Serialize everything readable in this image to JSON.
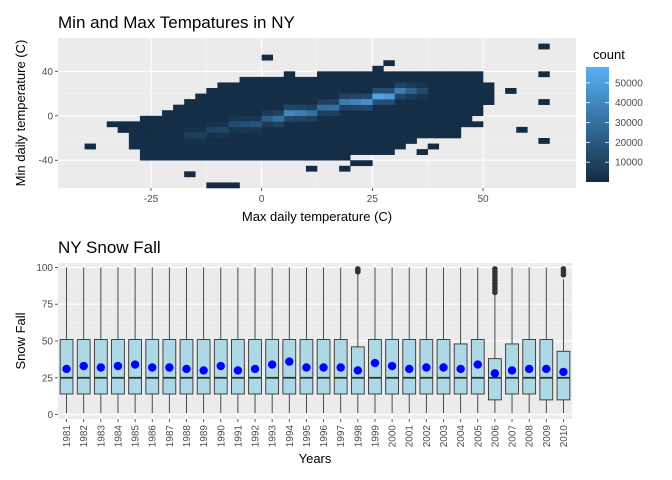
{
  "chart_data": [
    {
      "type": "heatmap",
      "title": "Min and Max Tempatures in NY",
      "xlabel": "Max daily temperature (C)",
      "ylabel": "Min daily temperature (C)",
      "xlim": [
        -46,
        71
      ],
      "ylim": [
        -65,
        70
      ],
      "xticks": [
        -25,
        0,
        25,
        50
      ],
      "yticks": [
        -40,
        0,
        40
      ],
      "legend": {
        "title": "count",
        "position": "right",
        "ticks": [
          10000,
          20000,
          30000,
          40000,
          50000
        ],
        "range": [
          0,
          58000
        ],
        "low_color": "#132B43",
        "high_color": "#56B1F7"
      },
      "bins_x": 2.5,
      "bins_y": 5,
      "dense_columns": [
        {
          "x": -35,
          "y0": -10,
          "y1": -5
        },
        {
          "x": -32.5,
          "y0": -15,
          "y1": -5
        },
        {
          "x": -30,
          "y0": -30,
          "y1": -5
        },
        {
          "x": -27.5,
          "y0": -40,
          "y1": 0
        },
        {
          "x": -25,
          "y0": -40,
          "y1": 0
        },
        {
          "x": -22.5,
          "y0": -40,
          "y1": 5
        },
        {
          "x": -20,
          "y0": -40,
          "y1": 10
        },
        {
          "x": -17.5,
          "y0": -40,
          "y1": 15
        },
        {
          "x": -15,
          "y0": -40,
          "y1": 20
        },
        {
          "x": -12.5,
          "y0": -40,
          "y1": 25
        },
        {
          "x": -10,
          "y0": -40,
          "y1": 30
        },
        {
          "x": -7.5,
          "y0": -40,
          "y1": 30
        },
        {
          "x": -5,
          "y0": -40,
          "y1": 35
        },
        {
          "x": -2.5,
          "y0": -40,
          "y1": 35
        },
        {
          "x": 0,
          "y0": -40,
          "y1": 35
        },
        {
          "x": 2.5,
          "y0": -40,
          "y1": 35
        },
        {
          "x": 5,
          "y0": -40,
          "y1": 35
        },
        {
          "x": 7.5,
          "y0": -40,
          "y1": 35
        },
        {
          "x": 10,
          "y0": -40,
          "y1": 35
        },
        {
          "x": 12.5,
          "y0": -40,
          "y1": 40
        },
        {
          "x": 15,
          "y0": -40,
          "y1": 40
        },
        {
          "x": 17.5,
          "y0": -35,
          "y1": 40
        },
        {
          "x": 20,
          "y0": -35,
          "y1": 40
        },
        {
          "x": 22.5,
          "y0": -35,
          "y1": 40
        },
        {
          "x": 25,
          "y0": -35,
          "y1": 45
        },
        {
          "x": 27.5,
          "y0": -35,
          "y1": 40
        },
        {
          "x": 30,
          "y0": -30,
          "y1": 40
        },
        {
          "x": 32.5,
          "y0": -25,
          "y1": 40
        },
        {
          "x": 35,
          "y0": -20,
          "y1": 40
        },
        {
          "x": 37.5,
          "y0": -20,
          "y1": 40
        },
        {
          "x": 40,
          "y0": -20,
          "y1": 40
        },
        {
          "x": 42.5,
          "y0": -20,
          "y1": 40
        },
        {
          "x": 45,
          "y0": -10,
          "y1": 40
        },
        {
          "x": 47.5,
          "y0": 0,
          "y1": 40
        },
        {
          "x": 50,
          "y0": 10,
          "y1": 30
        }
      ],
      "sparse_bins": [
        {
          "x": -40,
          "y": -30
        },
        {
          "x": -32.5,
          "y": -15
        },
        {
          "x": -27.5,
          "y": -15
        },
        {
          "x": -12.5,
          "y": -65
        },
        {
          "x": -10,
          "y": -65
        },
        {
          "x": -7.5,
          "y": -65
        },
        {
          "x": -17.5,
          "y": -55
        },
        {
          "x": 0,
          "y": 50
        },
        {
          "x": 5,
          "y": 30
        },
        {
          "x": 5,
          "y": 35
        },
        {
          "x": 10,
          "y": -50
        },
        {
          "x": 17.5,
          "y": -50
        },
        {
          "x": 17.5,
          "y": -40
        },
        {
          "x": 20,
          "y": -45
        },
        {
          "x": 22.5,
          "y": -45
        },
        {
          "x": 27.5,
          "y": 45
        },
        {
          "x": 35,
          "y": -35
        },
        {
          "x": 37.5,
          "y": -30
        },
        {
          "x": 47.5,
          "y": -10
        },
        {
          "x": 55,
          "y": 20
        },
        {
          "x": 57.5,
          "y": -15
        },
        {
          "x": 62.5,
          "y": 60
        },
        {
          "x": 62.5,
          "y": 10
        },
        {
          "x": 62.5,
          "y": -25
        },
        {
          "x": 62.5,
          "y": 35
        }
      ],
      "ridge": [
        {
          "x": -17.5,
          "y": -20,
          "count": 8000
        },
        {
          "x": -15,
          "y": -20,
          "count": 9000
        },
        {
          "x": -12.5,
          "y": -15,
          "count": 10000
        },
        {
          "x": -10,
          "y": -15,
          "count": 12000
        },
        {
          "x": -7.5,
          "y": -10,
          "count": 14000
        },
        {
          "x": -5,
          "y": -10,
          "count": 16000
        },
        {
          "x": -2.5,
          "y": -10,
          "count": 18000
        },
        {
          "x": 0,
          "y": -5,
          "count": 22000
        },
        {
          "x": 2.5,
          "y": -5,
          "count": 30000
        },
        {
          "x": 5,
          "y": 0,
          "count": 40000
        },
        {
          "x": 7.5,
          "y": 0,
          "count": 36000
        },
        {
          "x": 10,
          "y": 0,
          "count": 30000
        },
        {
          "x": 12.5,
          "y": 5,
          "count": 28000
        },
        {
          "x": 15,
          "y": 5,
          "count": 30000
        },
        {
          "x": 17.5,
          "y": 10,
          "count": 34000
        },
        {
          "x": 20,
          "y": 10,
          "count": 38000
        },
        {
          "x": 22.5,
          "y": 10,
          "count": 44000
        },
        {
          "x": 25,
          "y": 15,
          "count": 52000
        },
        {
          "x": 27.5,
          "y": 15,
          "count": 48000
        },
        {
          "x": 30,
          "y": 20,
          "count": 36000
        },
        {
          "x": 32.5,
          "y": 20,
          "count": 24000
        },
        {
          "x": 35,
          "y": 20,
          "count": 14000
        }
      ]
    },
    {
      "type": "boxplot",
      "title": "NY Snow Fall",
      "xlabel": "Years",
      "ylabel": "Snow Fall",
      "ylim": [
        -3,
        103
      ],
      "yticks": [
        0,
        25,
        50,
        75,
        100
      ],
      "box_fill": "#ADD8E6",
      "mean_color": "#0000FF",
      "categories": [
        "1981",
        "1982",
        "1983",
        "1984",
        "1985",
        "1986",
        "1987",
        "1988",
        "1989",
        "1990",
        "1991",
        "1992",
        "1993",
        "1994",
        "1995",
        "1996",
        "1997",
        "1998",
        "1999",
        "2000",
        "2001",
        "2002",
        "2003",
        "2004",
        "2005",
        "2006",
        "2007",
        "2008",
        "2009",
        "2010"
      ],
      "q1": [
        14,
        14,
        14,
        14,
        14,
        14,
        14,
        14,
        14,
        14,
        14,
        14,
        14,
        14,
        14,
        14,
        14,
        14,
        14,
        14,
        14,
        14,
        14,
        14,
        14,
        10,
        14,
        14,
        10,
        10
      ],
      "median": [
        25,
        25,
        25,
        25,
        25,
        25,
        25,
        25,
        25,
        25,
        25,
        25,
        25,
        25,
        25,
        25,
        25,
        25,
        25,
        25,
        25,
        25,
        25,
        25,
        25,
        25,
        25,
        25,
        25,
        25
      ],
      "q3": [
        51,
        51,
        51,
        51,
        51,
        51,
        51,
        51,
        51,
        51,
        51,
        51,
        51,
        51,
        51,
        51,
        51,
        46,
        51,
        51,
        51,
        51,
        51,
        48,
        51,
        38,
        48,
        51,
        51,
        43
      ],
      "whisker_low": [
        1,
        1,
        1,
        1,
        1,
        1,
        1,
        1,
        1,
        1,
        1,
        1,
        1,
        1,
        1,
        1,
        1,
        1,
        1,
        1,
        1,
        1,
        1,
        1,
        1,
        1,
        1,
        1,
        1,
        1
      ],
      "whisker_high": [
        100,
        100,
        100,
        100,
        100,
        100,
        100,
        100,
        100,
        100,
        100,
        100,
        100,
        100,
        100,
        100,
        100,
        96,
        100,
        100,
        100,
        100,
        100,
        100,
        100,
        82,
        100,
        100,
        100,
        92
      ],
      "mean": [
        31,
        33,
        32,
        33,
        34,
        32,
        32,
        31,
        30,
        33,
        30,
        31,
        34,
        36,
        32,
        32,
        32,
        30,
        35,
        33,
        31,
        32,
        32,
        31,
        34,
        28,
        30,
        31,
        31,
        29
      ],
      "outliers": [
        {
          "year": "1998",
          "values": [
            97,
            98,
            99
          ]
        },
        {
          "year": "2006",
          "values": [
            83,
            85,
            87,
            89,
            91,
            93,
            95,
            97,
            99
          ]
        },
        {
          "year": "2010",
          "values": [
            95,
            97,
            99
          ]
        }
      ]
    }
  ]
}
